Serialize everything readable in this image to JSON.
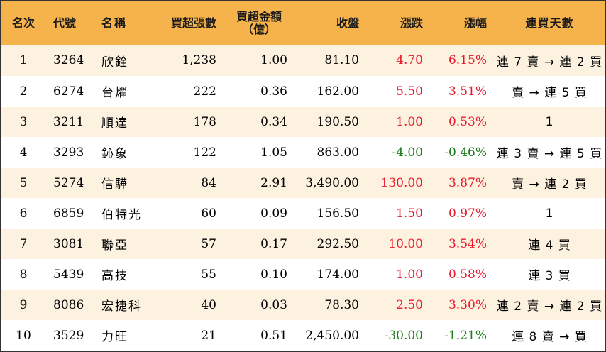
{
  "headers": {
    "rank": "名次",
    "code": "代號",
    "name": "名稱",
    "net_buy_lots": "買超張數",
    "net_buy_amount_line1": "買超金額",
    "net_buy_amount_line2": "（億）",
    "close": "收盤",
    "change": "漲跌",
    "change_pct": "漲幅",
    "consecutive_days": "連買天數"
  },
  "colors": {
    "header_bg": "#f6b34c",
    "odd_row_bg": "#fdf1df",
    "even_row_bg": "#ffffff",
    "up": "#e8192c",
    "down": "#1b7a1b"
  },
  "rows": [
    {
      "rank": "1",
      "code": "3264",
      "name": "欣銓",
      "lots": "1,238",
      "amount": "1.00",
      "close": "81.10",
      "change": "4.70",
      "pct": "6.15%",
      "days": "連 7 賣 → 連 2 買",
      "dir": "up"
    },
    {
      "rank": "2",
      "code": "6274",
      "name": "台燿",
      "lots": "222",
      "amount": "0.36",
      "close": "162.00",
      "change": "5.50",
      "pct": "3.51%",
      "days": "賣 → 連 5 買",
      "dir": "up"
    },
    {
      "rank": "3",
      "code": "3211",
      "name": "順達",
      "lots": "178",
      "amount": "0.34",
      "close": "190.50",
      "change": "1.00",
      "pct": "0.53%",
      "days": "1",
      "dir": "up"
    },
    {
      "rank": "4",
      "code": "3293",
      "name": "鈊象",
      "lots": "122",
      "amount": "1.05",
      "close": "863.00",
      "change": "-4.00",
      "pct": "-0.46%",
      "days": "連 3 賣 → 連 5 買",
      "dir": "down"
    },
    {
      "rank": "5",
      "code": "5274",
      "name": "信驊",
      "lots": "84",
      "amount": "2.91",
      "close": "3,490.00",
      "change": "130.00",
      "pct": "3.87%",
      "days": "賣 → 連 2 買",
      "dir": "up"
    },
    {
      "rank": "6",
      "code": "6859",
      "name": "伯特光",
      "lots": "60",
      "amount": "0.09",
      "close": "156.50",
      "change": "1.50",
      "pct": "0.97%",
      "days": "1",
      "dir": "up"
    },
    {
      "rank": "7",
      "code": "3081",
      "name": "聯亞",
      "lots": "57",
      "amount": "0.17",
      "close": "292.50",
      "change": "10.00",
      "pct": "3.54%",
      "days": "連 4 買",
      "dir": "up"
    },
    {
      "rank": "8",
      "code": "5439",
      "name": "高技",
      "lots": "55",
      "amount": "0.10",
      "close": "174.00",
      "change": "1.00",
      "pct": "0.58%",
      "days": "連 3 買",
      "dir": "up"
    },
    {
      "rank": "9",
      "code": "8086",
      "name": "宏捷科",
      "lots": "40",
      "amount": "0.03",
      "close": "78.30",
      "change": "2.50",
      "pct": "3.30%",
      "days": "連 2 賣 → 連 2 買",
      "dir": "up"
    },
    {
      "rank": "10",
      "code": "3529",
      "name": "力旺",
      "lots": "21",
      "amount": "0.51",
      "close": "2,450.00",
      "change": "-30.00",
      "pct": "-1.21%",
      "days": "連 8 賣 → 買",
      "dir": "down"
    }
  ]
}
